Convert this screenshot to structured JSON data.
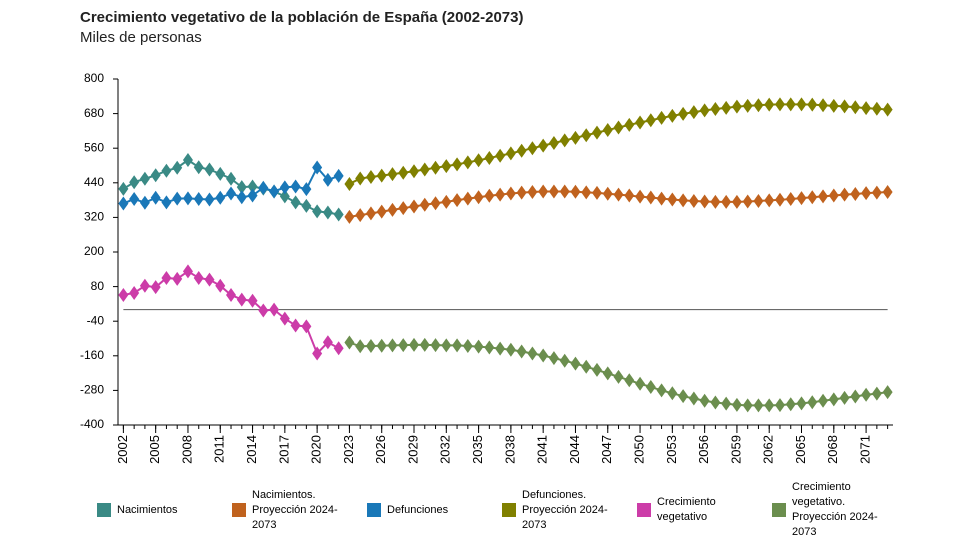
{
  "chart_data": {
    "type": "line",
    "title": "Crecimiento vegetativo de la población de España (2002-2073)",
    "subtitle": "Miles de personas",
    "x": [
      2002,
      2003,
      2004,
      2005,
      2006,
      2007,
      2008,
      2009,
      2010,
      2011,
      2012,
      2013,
      2014,
      2015,
      2016,
      2017,
      2018,
      2019,
      2020,
      2021,
      2022,
      2023,
      2024,
      2025,
      2026,
      2027,
      2028,
      2029,
      2030,
      2031,
      2032,
      2033,
      2034,
      2035,
      2036,
      2037,
      2038,
      2039,
      2040,
      2041,
      2042,
      2043,
      2044,
      2045,
      2046,
      2047,
      2048,
      2049,
      2050,
      2051,
      2052,
      2053,
      2054,
      2055,
      2056,
      2057,
      2058,
      2059,
      2060,
      2061,
      2062,
      2063,
      2064,
      2065,
      2066,
      2067,
      2068,
      2069,
      2070,
      2071,
      2072,
      2073
    ],
    "xlim": [
      2001.5,
      2073.5
    ],
    "xticks": [
      2002,
      2005,
      2008,
      2011,
      2014,
      2017,
      2020,
      2023,
      2026,
      2029,
      2032,
      2035,
      2038,
      2041,
      2044,
      2047,
      2050,
      2053,
      2056,
      2059,
      2062,
      2065,
      2068,
      2071
    ],
    "ylim": [
      -400,
      800
    ],
    "yticks": [
      800,
      680,
      560,
      440,
      320,
      200,
      80,
      -40,
      -160,
      -280,
      -400
    ],
    "legend": "bottom",
    "markers": "diamond",
    "series": [
      {
        "name": "Nacimientos",
        "color": "#3a8a85",
        "values": [
          419,
          442,
          454,
          466,
          482,
          492,
          519,
          494,
          486,
          471,
          454,
          425,
          427,
          420,
          410,
          393,
          372,
          360,
          341,
          337,
          330,
          null,
          null,
          null,
          null,
          null,
          null,
          null,
          null,
          null,
          null,
          null,
          null,
          null,
          null,
          null,
          null,
          null,
          null,
          null,
          null,
          null,
          null,
          null,
          null,
          null,
          null,
          null,
          null,
          null,
          null,
          null,
          null,
          null,
          null,
          null,
          null,
          null,
          null,
          null,
          null,
          null,
          null,
          null,
          null,
          null,
          null,
          null,
          null,
          null,
          null,
          null
        ]
      },
      {
        "name": "Nacimientos. Proyección 2024-2073",
        "color": "#c0621e",
        "values": [
          null,
          null,
          null,
          null,
          null,
          null,
          null,
          null,
          null,
          null,
          null,
          null,
          null,
          null,
          null,
          null,
          null,
          null,
          null,
          null,
          null,
          322,
          328,
          334,
          340,
          346,
          352,
          358,
          364,
          369,
          374,
          380,
          385,
          390,
          395,
          399,
          403,
          406,
          408,
          410,
          410,
          410,
          409,
          407,
          405,
          402,
          399,
          396,
          392,
          389,
          385,
          382,
          379,
          377,
          375,
          374,
          374,
          374,
          375,
          377,
          379,
          381,
          384,
          387,
          390,
          393,
          396,
          399,
          401,
          404,
          406,
          408
        ]
      },
      {
        "name": "Defunciones",
        "color": "#1a78b8",
        "values": [
          368,
          384,
          371,
          388,
          372,
          385,
          386,
          384,
          382,
          388,
          403,
          390,
          396,
          423,
          410,
          424,
          427,
          418,
          493,
          450,
          464,
          null,
          null,
          null,
          null,
          null,
          null,
          null,
          null,
          null,
          null,
          null,
          null,
          null,
          null,
          null,
          null,
          null,
          null,
          null,
          null,
          null,
          null,
          null,
          null,
          null,
          null,
          null,
          null,
          null,
          null,
          null,
          null,
          null,
          null,
          null,
          null,
          null,
          null,
          null,
          null,
          null,
          null,
          null,
          null,
          null,
          null,
          null,
          null,
          null,
          null,
          null
        ]
      },
      {
        "name": "Defunciones. Proyección 2024-2073",
        "color": "#808000",
        "values": [
          null,
          null,
          null,
          null,
          null,
          null,
          null,
          null,
          null,
          null,
          null,
          null,
          null,
          null,
          null,
          null,
          null,
          null,
          null,
          null,
          null,
          436,
          455,
          460,
          465,
          470,
          475,
          480,
          486,
          492,
          498,
          504,
          511,
          518,
          526,
          534,
          542,
          551,
          560,
          569,
          578,
          587,
          596,
          605,
          614,
          623,
          632,
          641,
          649,
          657,
          665,
          672,
          679,
          685,
          691,
          696,
          700,
          704,
          707,
          709,
          711,
          712,
          712,
          712,
          711,
          709,
          707,
          705,
          702,
          699,
          697,
          694
        ]
      },
      {
        "name": "Crecimiento vegetativo",
        "color": "#cc3ca8",
        "values": [
          51,
          58,
          83,
          78,
          110,
          107,
          133,
          110,
          104,
          83,
          51,
          35,
          31,
          -3,
          0,
          -31,
          -55,
          -58,
          -152,
          -113,
          -134,
          null,
          null,
          null,
          null,
          null,
          null,
          null,
          null,
          null,
          null,
          null,
          null,
          null,
          null,
          null,
          null,
          null,
          null,
          null,
          null,
          null,
          null,
          null,
          null,
          null,
          null,
          null,
          null,
          null,
          null,
          null,
          null,
          null,
          null,
          null,
          null,
          null,
          null,
          null,
          null,
          null,
          null,
          null,
          null,
          null,
          null,
          null,
          null,
          null,
          null,
          null
        ]
      },
      {
        "name": "Crecimiento vegetativo. Proyección 2024-2073",
        "color": "#6b8e4e",
        "values": [
          null,
          null,
          null,
          null,
          null,
          null,
          null,
          null,
          null,
          null,
          null,
          null,
          null,
          null,
          null,
          null,
          null,
          null,
          null,
          null,
          null,
          -114,
          -127,
          -126,
          -125,
          -124,
          -123,
          -122,
          -122,
          -123,
          -124,
          -124,
          -126,
          -128,
          -131,
          -135,
          -139,
          -145,
          -152,
          -159,
          -168,
          -177,
          -187,
          -198,
          -209,
          -221,
          -233,
          -245,
          -257,
          -268,
          -280,
          -290,
          -300,
          -308,
          -316,
          -322,
          -326,
          -330,
          -332,
          -332,
          -332,
          -331,
          -328,
          -325,
          -321,
          -316,
          -311,
          -306,
          -301,
          -295,
          -291,
          -286
        ]
      }
    ]
  }
}
